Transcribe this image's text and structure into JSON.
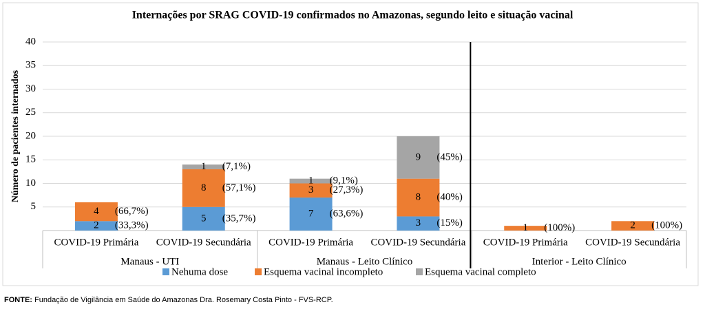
{
  "chart_data": {
    "type": "stacked_bar",
    "title": "Internações por SRAG COVID-19 confirmados no Amazonas, segundo leito e situação vacinal",
    "y_label": "Número de pacientes internados",
    "categories": [
      "COVID-19 Primária",
      "COVID-19 Secundária",
      "COVID-19 Primária",
      "COVID-19 Secundária",
      "COVID-19 Primária",
      "COVID-19 Secundária"
    ],
    "groups": [
      {
        "name": "Manaus - UTI",
        "size": 2
      },
      {
        "name": "Manaus - Leito Clínico",
        "size": 2
      },
      {
        "name": "Interior - Leito Clínico",
        "size": 2
      }
    ],
    "series": [
      {
        "name": "Nehuma dose",
        "color": "#5b9bd5",
        "values": [
          2,
          5,
          7,
          3,
          null,
          null
        ],
        "labels": [
          "(33,3%)",
          "(35,7%)",
          "(63,6%)",
          "(15%)",
          null,
          null
        ]
      },
      {
        "name": "Esquema vacinal incompleto",
        "color": "#ed7d31",
        "values": [
          4,
          8,
          3,
          8,
          1,
          2
        ],
        "labels": [
          "(66,7%)",
          "(57,1%)",
          "(27,3%)",
          "(40%)",
          "(100%)",
          "(100%)"
        ]
      },
      {
        "name": "Esquema vacinal completo",
        "color": "#a5a5a5",
        "values": [
          null,
          1,
          1,
          9,
          null,
          null
        ],
        "labels": [
          null,
          "(7,1%)",
          "(9,1%)",
          "(45%)",
          null,
          null
        ]
      }
    ],
    "ylim": [
      0,
      40
    ],
    "yticks": [
      5,
      10,
      15,
      20,
      25,
      30,
      35,
      40
    ],
    "grid": true,
    "source": {
      "label": "FONTE:",
      "text": " Fundação de Vigilância em Saúde do Amazonas Dra. Rosemary Costa Pinto - FVS-RCP."
    }
  }
}
